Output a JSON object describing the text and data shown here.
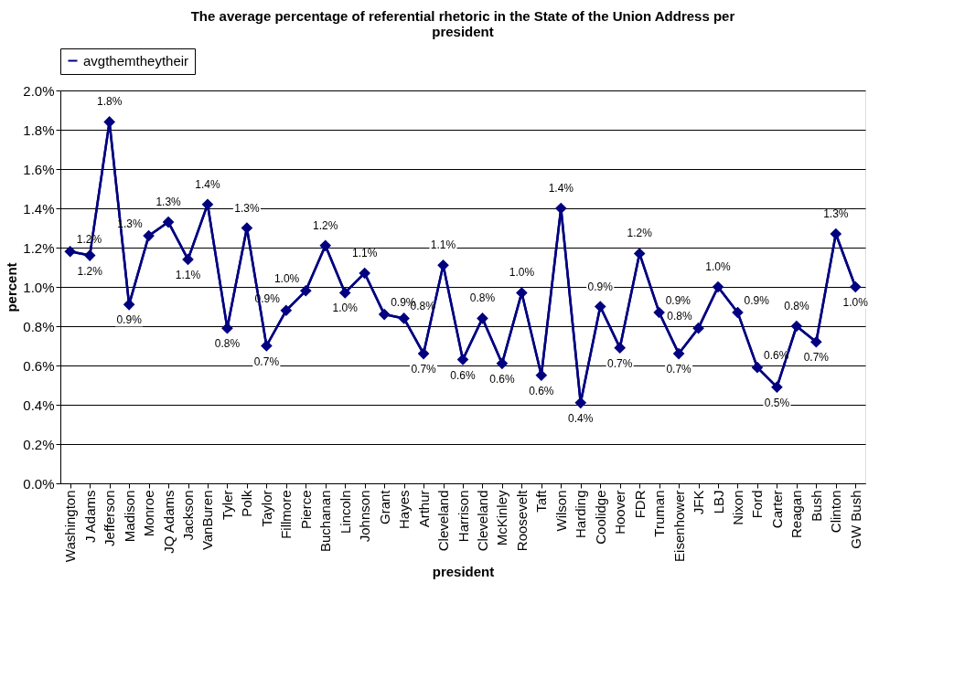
{
  "chart_data": {
    "type": "line",
    "title": "The average percentage of referential rhetoric in the State of the Union Address per president",
    "xlabel": "president",
    "ylabel": "percent",
    "categories": [
      "Washington",
      "J Adams",
      "Jefferson",
      "Madison",
      "Monroe",
      "JQ Adams",
      "Jackson",
      "VanBuren",
      "Tyler",
      "Polk",
      "Taylor",
      "Fillmore",
      "Pierce",
      "Buchanan",
      "Lincoln",
      "Johnson",
      "Grant",
      "Hayes",
      "Arthur",
      "Cleveland",
      "Harrison",
      "Cleveland",
      "McKinley",
      "Roosevelt",
      "Taft",
      "Wilson",
      "Harding",
      "Coolidge",
      "Hoover",
      "FDR",
      "Truman",
      "Eisenhower",
      "JFK",
      "LBJ",
      "Nixon",
      "Ford",
      "Carter",
      "Reagan",
      "Bush",
      "Clinton",
      "GW Bush"
    ],
    "series": [
      {
        "name": "avgthemtheytheir",
        "color": "#000080",
        "values": [
          1.18,
          1.16,
          1.84,
          0.91,
          1.26,
          1.33,
          1.14,
          1.42,
          0.79,
          1.3,
          0.7,
          0.88,
          0.98,
          1.21,
          0.97,
          1.07,
          0.86,
          0.84,
          0.66,
          1.11,
          0.63,
          0.84,
          0.61,
          0.97,
          0.55,
          1.4,
          0.41,
          0.9,
          0.69,
          1.17,
          0.87,
          0.66,
          0.79,
          1.0,
          0.87,
          0.59,
          0.49,
          0.8,
          0.72,
          1.27,
          1.0
        ],
        "value_labels": [
          "1.2%",
          "1.2%",
          "1.8%",
          "0.9%",
          "1.3%",
          "1.3%",
          "1.1%",
          "1.4%",
          "0.8%",
          "1.3%",
          "0.7%",
          "0.9%",
          "1.0%",
          "1.2%",
          "1.0%",
          "1.1%",
          "0.9%",
          "0.8%",
          "0.7%",
          "1.1%",
          "0.6%",
          "0.8%",
          "0.6%",
          "1.0%",
          "0.6%",
          "1.4%",
          "0.4%",
          "0.9%",
          "0.7%",
          "1.2%",
          "0.9%",
          "0.7%",
          "0.8%",
          "1.0%",
          "0.9%",
          "0.6%",
          "0.5%",
          "0.8%",
          "0.7%",
          "1.3%",
          "1.0%"
        ]
      }
    ],
    "ylim": [
      0,
      2
    ],
    "yticks": [
      {
        "value": 0,
        "label": "0.0%"
      },
      {
        "value": 0.2,
        "label": "0.2%"
      },
      {
        "value": 0.4,
        "label": "0.4%"
      },
      {
        "value": 0.6,
        "label": "0.6%"
      },
      {
        "value": 0.8,
        "label": "0.8%"
      },
      {
        "value": 1.0,
        "label": "1.0%"
      },
      {
        "value": 1.2,
        "label": "1.2%"
      },
      {
        "value": 1.4,
        "label": "1.4%"
      },
      {
        "value": 1.6,
        "label": "1.6%"
      },
      {
        "value": 1.8,
        "label": "1.8%"
      },
      {
        "value": 2.0,
        "label": "2.0%"
      }
    ],
    "grid": "y",
    "legend": "top",
    "marker": "diamond",
    "line_style": "solid"
  }
}
